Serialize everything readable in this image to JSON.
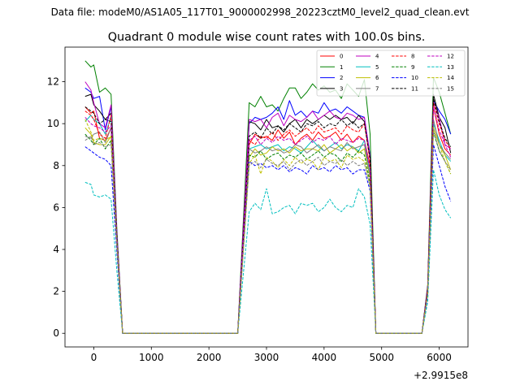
{
  "suptitle": "Data file: modeM0/AS1A05_117T01_9000002998_20223cztM0_level2_quad_clean.evt",
  "chart_data": {
    "type": "line",
    "title": "Quadrant 0 module wise count rates with 100.0s bins.",
    "xlabel": "",
    "ylabel": "",
    "offset_label": "+2.9915e8",
    "xlim": [
      -500,
      6500
    ],
    "ylim": [
      -0.65,
      13.65
    ],
    "xticks": [
      0,
      1000,
      2000,
      3000,
      4000,
      5000,
      6000
    ],
    "xtick_labels": [
      "0",
      "1000",
      "2000",
      "3000",
      "4000",
      "5000",
      "6000"
    ],
    "yticks": [
      0,
      2,
      4,
      6,
      8,
      10,
      12
    ],
    "ytick_labels": [
      "0",
      "2",
      "4",
      "6",
      "8",
      "10",
      "12"
    ],
    "grid": false,
    "legend_position": "top-right",
    "x": [
      -150,
      -50,
      0,
      100,
      200,
      300,
      400,
      500,
      700,
      1000,
      1500,
      2000,
      2500,
      2700,
      2800,
      2900,
      3000,
      3100,
      3200,
      3300,
      3400,
      3500,
      3600,
      3700,
      3800,
      3900,
      4000,
      4100,
      4200,
      4300,
      4400,
      4500,
      4600,
      4700,
      4800,
      4900,
      5000,
      5500,
      5700,
      5800,
      5900,
      6000,
      6100,
      6200
    ],
    "series": [
      {
        "name": "0",
        "color": "#ff0000",
        "dash": "solid",
        "values": [
          10.8,
          10.5,
          10.6,
          9.3,
          9.2,
          9.8,
          4.5,
          0,
          0,
          0,
          0,
          0,
          0,
          9.0,
          9.5,
          9.3,
          9.4,
          9.2,
          9.7,
          9.3,
          9.6,
          9.0,
          9.3,
          9.5,
          9.2,
          9.6,
          9.3,
          9.4,
          9.6,
          9.2,
          9.5,
          9.1,
          9.4,
          9.2,
          8.0,
          0,
          0,
          0,
          0,
          2.0,
          10.8,
          9.5,
          8.8,
          8.5
        ]
      },
      {
        "name": "1",
        "color": "#008000",
        "dash": "solid",
        "values": [
          13.0,
          12.7,
          12.8,
          11.5,
          11.7,
          11.4,
          5.0,
          0,
          0,
          0,
          0,
          0,
          0,
          11.0,
          10.8,
          11.3,
          10.8,
          10.9,
          10.6,
          11.2,
          11.7,
          11.7,
          11.2,
          11.5,
          11.9,
          11.6,
          11.8,
          11.5,
          11.6,
          11.2,
          11.9,
          11.6,
          11.3,
          12.1,
          9.5,
          0,
          0,
          0,
          0,
          2.3,
          12.2,
          11.5,
          10.5,
          9.5
        ]
      },
      {
        "name": "2",
        "color": "#0000ff",
        "dash": "solid",
        "values": [
          11.7,
          11.5,
          11.2,
          11.3,
          9.7,
          10.8,
          4.8,
          0,
          0,
          0,
          0,
          0,
          0,
          10.0,
          10.3,
          10.2,
          10.3,
          10.5,
          10.8,
          10.2,
          11.1,
          10.4,
          10.6,
          10.3,
          10.6,
          10.5,
          11.0,
          10.6,
          10.7,
          10.5,
          10.8,
          10.6,
          10.4,
          10.3,
          8.5,
          0,
          0,
          0,
          0,
          2.2,
          11.1,
          10.6,
          10.2,
          9.5
        ]
      },
      {
        "name": "3",
        "color": "#000000",
        "dash": "solid",
        "values": [
          11.3,
          11.4,
          10.9,
          10.6,
          10.2,
          10.5,
          4.7,
          0,
          0,
          0,
          0,
          0,
          0,
          10.1,
          10.0,
          9.7,
          10.2,
          9.8,
          9.9,
          9.6,
          10.0,
          10.2,
          9.8,
          10.2,
          10.0,
          10.2,
          10.4,
          10.2,
          10.4,
          10.2,
          10.3,
          10.0,
          10.4,
          10.1,
          8.4,
          0,
          0,
          0,
          0,
          2.2,
          11.4,
          10.3,
          9.8,
          8.6
        ]
      },
      {
        "name": "4",
        "color": "#bf00bf",
        "dash": "solid",
        "values": [
          12.0,
          11.6,
          11.0,
          10.0,
          9.8,
          10.9,
          4.8,
          0,
          0,
          0,
          0,
          0,
          0,
          10.2,
          10.1,
          10.2,
          9.8,
          10.3,
          10.5,
          9.9,
          10.4,
          10.2,
          10.1,
          10.3,
          10.6,
          10.2,
          10.4,
          10.6,
          10.3,
          10.2,
          10.5,
          10.4,
          10.2,
          10.3,
          8.4,
          0,
          0,
          0,
          0,
          2.2,
          11.0,
          10.3,
          9.0,
          8.8
        ]
      },
      {
        "name": "5",
        "color": "#00bfbf",
        "dash": "solid",
        "values": [
          10.1,
          10.4,
          10.2,
          10.0,
          9.5,
          10.3,
          4.5,
          0,
          0,
          0,
          0,
          0,
          0,
          8.8,
          8.9,
          9.0,
          8.8,
          8.9,
          9.0,
          8.7,
          8.9,
          8.8,
          8.6,
          8.9,
          9.2,
          8.9,
          8.7,
          8.9,
          9.1,
          8.8,
          9.0,
          8.9,
          8.7,
          9.2,
          7.6,
          0,
          0,
          0,
          0,
          2.0,
          10.0,
          9.2,
          8.5,
          8.2
        ]
      },
      {
        "name": "6",
        "color": "#bfbf00",
        "dash": "solid",
        "values": [
          9.8,
          9.5,
          9.1,
          9.0,
          9.0,
          9.4,
          4.2,
          0,
          0,
          0,
          0,
          0,
          0,
          8.4,
          8.8,
          8.5,
          8.6,
          8.9,
          8.7,
          8.8,
          8.6,
          8.9,
          8.7,
          8.8,
          8.8,
          8.7,
          9.0,
          8.6,
          8.8,
          9.0,
          8.7,
          8.9,
          8.6,
          8.8,
          7.4,
          0,
          0,
          0,
          0,
          1.9,
          9.8,
          9.0,
          8.5,
          7.8
        ]
      },
      {
        "name": "7",
        "color": "#7f7f7f",
        "dash": "solid",
        "values": [
          9.4,
          9.3,
          9.5,
          9.6,
          9.1,
          9.8,
          4.4,
          0,
          0,
          0,
          0,
          0,
          0,
          8.8,
          8.6,
          8.7,
          8.9,
          8.7,
          8.8,
          8.6,
          8.7,
          9.0,
          8.9,
          8.6,
          8.8,
          9.0,
          8.7,
          8.9,
          8.8,
          8.7,
          9.1,
          8.8,
          8.9,
          9.0,
          7.5,
          0,
          0,
          0,
          0,
          2.0,
          10.2,
          9.0,
          8.6,
          8.3
        ]
      },
      {
        "name": "8",
        "color": "#ff0000",
        "dash": "dashed",
        "values": [
          10.6,
          10.4,
          10.2,
          9.5,
          9.3,
          10.4,
          4.6,
          0,
          0,
          0,
          0,
          0,
          0,
          9.2,
          9.0,
          9.4,
          9.3,
          9.6,
          9.2,
          9.5,
          9.7,
          9.4,
          9.6,
          9.8,
          9.5,
          9.9,
          9.6,
          9.7,
          9.8,
          9.5,
          9.9,
          9.7,
          9.6,
          10.0,
          8.2,
          0,
          0,
          0,
          0,
          2.1,
          11.0,
          10.0,
          9.2,
          8.8
        ]
      },
      {
        "name": "9",
        "color": "#008000",
        "dash": "dashed",
        "values": [
          9.5,
          9.2,
          9.0,
          9.3,
          8.8,
          9.2,
          4.3,
          0,
          0,
          0,
          0,
          0,
          0,
          8.5,
          8.4,
          8.7,
          8.3,
          8.5,
          8.6,
          8.3,
          8.5,
          8.4,
          8.6,
          8.3,
          8.5,
          8.7,
          8.4,
          8.6,
          8.5,
          8.2,
          8.6,
          8.4,
          8.7,
          8.5,
          7.2,
          0,
          0,
          0,
          0,
          1.9,
          9.6,
          8.7,
          8.2,
          7.6
        ]
      },
      {
        "name": "10",
        "color": "#0000ff",
        "dash": "dashed",
        "values": [
          8.9,
          8.7,
          8.6,
          8.4,
          8.3,
          8.0,
          3.9,
          0,
          0,
          0,
          0,
          0,
          0,
          8.2,
          8.0,
          8.1,
          7.9,
          8.0,
          7.8,
          8.0,
          7.7,
          7.9,
          7.8,
          7.6,
          8.0,
          7.8,
          7.9,
          7.7,
          8.0,
          7.8,
          7.9,
          7.6,
          7.8,
          7.8,
          6.8,
          0,
          0,
          0,
          0,
          1.8,
          9.0,
          8.0,
          7.0,
          6.3
        ]
      },
      {
        "name": "11",
        "color": "#000000",
        "dash": "dashed",
        "values": [
          10.8,
          10.6,
          10.5,
          10.0,
          10.2,
          10.1,
          4.6,
          0,
          0,
          0,
          0,
          0,
          0,
          9.4,
          9.6,
          9.3,
          9.8,
          9.5,
          9.9,
          9.7,
          10.0,
          9.8,
          9.6,
          10.0,
          9.9,
          10.1,
          9.8,
          10.0,
          9.9,
          10.2,
          9.9,
          10.1,
          9.8,
          10.0,
          8.3,
          0,
          0,
          0,
          0,
          2.1,
          11.2,
          10.1,
          9.3,
          8.9
        ]
      },
      {
        "name": "12",
        "color": "#bf00bf",
        "dash": "dashed",
        "values": [
          10.3,
          10.0,
          9.9,
          9.8,
          9.6,
          9.9,
          4.4,
          0,
          0,
          0,
          0,
          0,
          0,
          9.2,
          9.4,
          9.0,
          9.3,
          9.1,
          9.4,
          9.2,
          9.3,
          9.0,
          9.2,
          9.4,
          9.1,
          9.3,
          9.2,
          9.4,
          9.0,
          9.3,
          9.2,
          9.1,
          9.3,
          9.2,
          7.8,
          0,
          0,
          0,
          0,
          2.0,
          10.8,
          9.7,
          9.0,
          8.4
        ]
      },
      {
        "name": "13",
        "color": "#00bfbf",
        "dash": "dashed",
        "values": [
          7.2,
          7.1,
          6.6,
          6.5,
          6.6,
          6.4,
          3.0,
          0,
          0,
          0,
          0,
          0,
          0,
          5.8,
          6.2,
          5.9,
          6.9,
          5.7,
          5.8,
          6.0,
          6.1,
          5.7,
          6.2,
          6.1,
          6.2,
          5.8,
          6.0,
          6.4,
          6.0,
          5.8,
          6.1,
          6.0,
          6.9,
          6.5,
          5.2,
          0,
          0,
          0,
          0,
          1.5,
          7.8,
          6.6,
          5.9,
          5.5
        ]
      },
      {
        "name": "14",
        "color": "#bfbf00",
        "dash": "dashed",
        "values": [
          10.2,
          9.6,
          9.2,
          9.3,
          9.2,
          9.4,
          4.3,
          0,
          0,
          0,
          0,
          0,
          0,
          8.1,
          8.5,
          7.6,
          8.4,
          8.2,
          7.9,
          8.3,
          8.0,
          8.4,
          8.1,
          8.3,
          8.2,
          7.8,
          8.4,
          8.2,
          8.3,
          7.9,
          8.5,
          8.3,
          8.4,
          8.2,
          7.0,
          0,
          0,
          0,
          0,
          1.9,
          9.8,
          9.0,
          8.2,
          7.6
        ]
      },
      {
        "name": "15",
        "color": "#7f7f7f",
        "dash": "dashed",
        "values": [
          9.2,
          9.4,
          9.0,
          9.1,
          8.9,
          9.0,
          4.2,
          0,
          0,
          0,
          0,
          0,
          0,
          8.0,
          8.2,
          7.9,
          8.3,
          8.1,
          8.0,
          8.2,
          7.8,
          8.1,
          8.3,
          8.0,
          8.2,
          8.4,
          8.0,
          8.2,
          8.1,
          8.3,
          8.0,
          8.2,
          8.0,
          8.1,
          7.0,
          0,
          0,
          0,
          0,
          1.9,
          9.7,
          8.7,
          8.2,
          7.8
        ]
      }
    ]
  }
}
